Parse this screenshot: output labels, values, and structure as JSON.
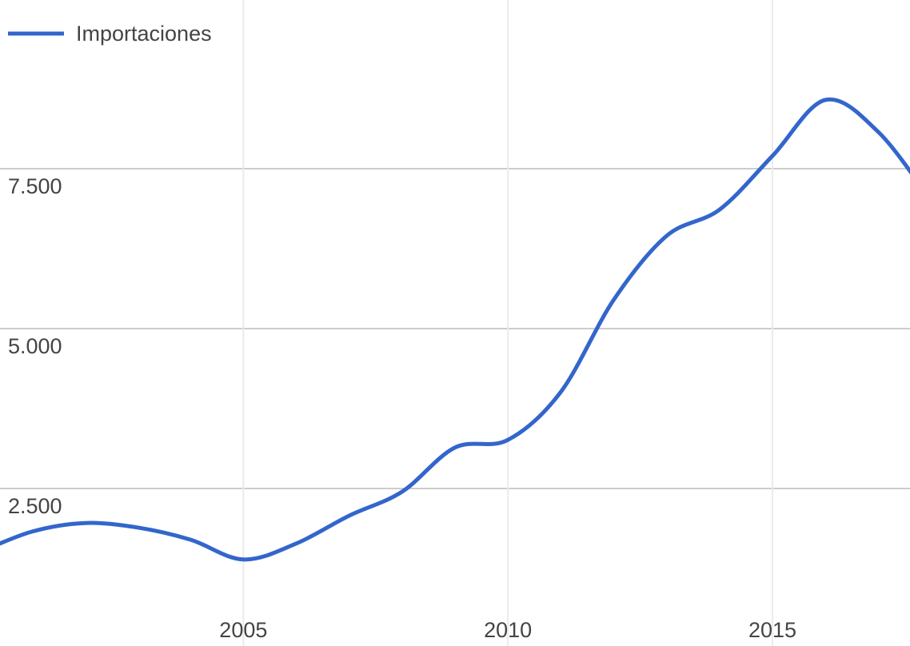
{
  "chart_data": {
    "type": "line",
    "x": [
      2000,
      2001,
      2002,
      2003,
      2004,
      2005,
      2006,
      2007,
      2008,
      2009,
      2010,
      2011,
      2012,
      2013,
      2014,
      2015,
      2016,
      2017,
      2018
    ],
    "series": [
      {
        "name": "Importaciones",
        "color": "#3366cc",
        "values": [
          1500,
          1825,
          1960,
          1890,
          1700,
          1390,
          1640,
          2075,
          2450,
          3140,
          3260,
          4010,
          5450,
          6450,
          6860,
          7700,
          8575,
          8075,
          7000
        ]
      }
    ],
    "xlim": [
      2000.4,
      2017.6
    ],
    "xticks": [
      2005,
      2010,
      2015
    ],
    "ylim": [
      0,
      10000
    ],
    "yticks": [
      {
        "value": 2500,
        "label": "2.500"
      },
      {
        "value": 5000,
        "label": "5.000"
      },
      {
        "value": 7500,
        "label": "7.500"
      }
    ],
    "grid": true,
    "legend": "top-left"
  }
}
